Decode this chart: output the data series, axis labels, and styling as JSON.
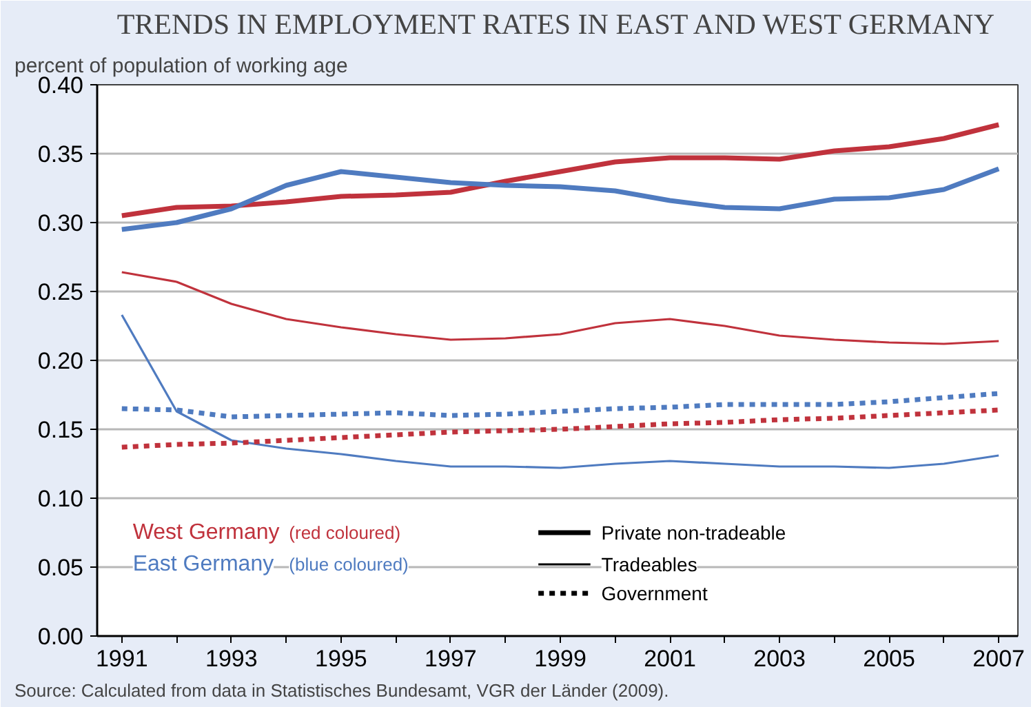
{
  "chart_data": {
    "type": "line",
    "title": "TRENDS IN EMPLOYMENT RATES IN EAST AND WEST GERMANY",
    "ylabel": "percent of population of working age",
    "categories": [
      "1991",
      null,
      "1993",
      null,
      "1995",
      null,
      "1997",
      null,
      "1999",
      null,
      "2001",
      null,
      "2003",
      null,
      "2005",
      null,
      "2007"
    ],
    "ylim": [
      0,
      0.4
    ],
    "yticks": [
      {
        "value": 0,
        "label": "0.00"
      },
      {
        "value": 0.05,
        "label": "0.05"
      },
      {
        "value": 0.1,
        "label": "0.10"
      },
      {
        "value": 0.15,
        "label": "0.15"
      },
      {
        "value": 0.2,
        "label": "0.20"
      },
      {
        "value": 0.25,
        "label": "0.25"
      },
      {
        "value": 0.3,
        "label": "0.30"
      },
      {
        "value": 0.35,
        "label": "0.35"
      },
      {
        "value": 0.4,
        "label": "0.40"
      }
    ],
    "grid": "y",
    "series": [
      {
        "color": "#c0323c",
        "line_style": "solid",
        "values": [
          0.305,
          0.311,
          0.312,
          0.315,
          0.319,
          0.32,
          0.322,
          0.33,
          0.337,
          0.344,
          0.347,
          0.347,
          0.346,
          0.352,
          0.355,
          0.361,
          0.371
        ]
      },
      {
        "color": "#4f7bc0",
        "line_style": "solid",
        "values": [
          0.295,
          0.3,
          0.31,
          0.327,
          0.337,
          0.333,
          0.329,
          0.327,
          0.326,
          0.323,
          0.316,
          0.311,
          0.31,
          0.317,
          0.318,
          0.324,
          0.339
        ]
      },
      {
        "color": "#c0323c",
        "line_style": "solid",
        "values": [
          0.264,
          0.257,
          0.241,
          0.23,
          0.224,
          0.219,
          0.215,
          0.216,
          0.219,
          0.227,
          0.23,
          0.225,
          0.218,
          0.215,
          0.213,
          0.212,
          0.214
        ]
      },
      {
        "color": "#4f7bc0",
        "line_style": "solid",
        "values": [
          0.233,
          0.163,
          0.142,
          0.136,
          0.132,
          0.127,
          0.123,
          0.123,
          0.122,
          0.125,
          0.127,
          0.125,
          0.123,
          0.123,
          0.122,
          0.125,
          0.131
        ]
      },
      {
        "color": "#c0323c",
        "line_style": "dotted",
        "values": [
          0.137,
          0.139,
          0.14,
          0.142,
          0.144,
          0.146,
          0.148,
          0.149,
          0.15,
          0.152,
          0.154,
          0.155,
          0.157,
          0.158,
          0.16,
          0.162,
          0.164
        ]
      },
      {
        "color": "#4f7bc0",
        "line_style": "dotted",
        "values": [
          0.165,
          0.164,
          0.159,
          0.16,
          0.161,
          0.162,
          0.16,
          0.161,
          0.163,
          0.165,
          0.166,
          0.168,
          0.168,
          0.168,
          0.17,
          0.173,
          0.176
        ]
      }
    ],
    "annotations": [
      "West Germany",
      "(red coloured)",
      "East Germany",
      "(blue coloured)",
      "Private non-tradeable",
      "Tradeables",
      "Government",
      "Source: Calculated from data in Statistisches Bundesamt, VGR der Länder (2009)."
    ]
  }
}
